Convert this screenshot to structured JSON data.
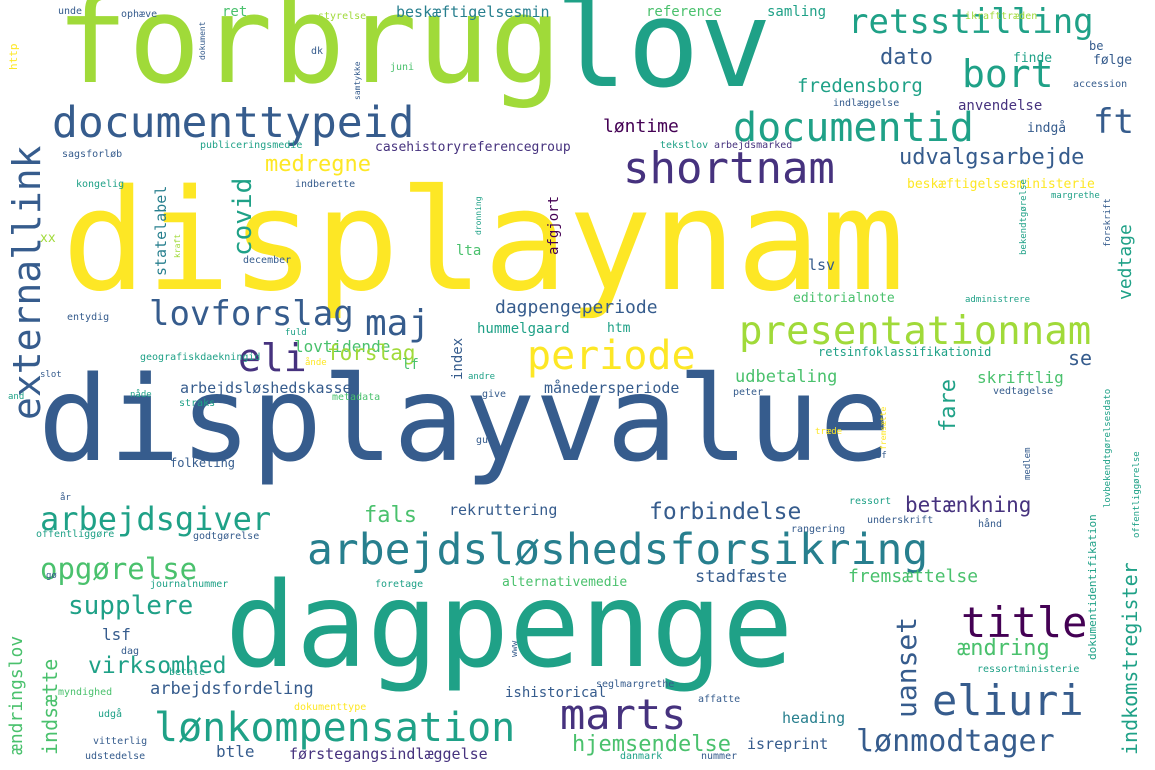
{
  "colors": {
    "yellow": "#fde725",
    "lime": "#a0da39",
    "green": "#4ac16d",
    "teal": "#1fa187",
    "cyan": "#277f8e",
    "blue": "#365c8d",
    "indigo": "#46327e",
    "purple": "#440154"
  },
  "words": [
    {
      "text": "displayvalue",
      "color": "blue"
    },
    {
      "text": "displaynam",
      "color": "yellow"
    },
    {
      "text": "forbrug",
      "color": "lime"
    },
    {
      "text": "lov",
      "color": "teal"
    },
    {
      "text": "dagpenge",
      "color": "teal"
    },
    {
      "text": "arbejdsløshedsforsikring",
      "color": "cyan"
    },
    {
      "text": "lønkompensation",
      "color": "teal"
    },
    {
      "text": "presentationnam",
      "color": "lime"
    },
    {
      "text": "documenttypeid",
      "color": "blue"
    },
    {
      "text": "shortnam",
      "color": "indigo"
    },
    {
      "text": "documentid",
      "color": "teal"
    },
    {
      "text": "retsstilling",
      "color": "teal"
    },
    {
      "text": "bort",
      "color": "teal"
    },
    {
      "text": "externallink",
      "color": "blue"
    },
    {
      "text": "periode",
      "color": "yellow"
    },
    {
      "text": "eli",
      "color": "indigo"
    },
    {
      "text": "lovforslag",
      "color": "blue"
    },
    {
      "text": "maj",
      "color": "blue"
    },
    {
      "text": "marts",
      "color": "indigo"
    },
    {
      "text": "title",
      "color": "purple"
    },
    {
      "text": "eliuri",
      "color": "blue"
    },
    {
      "text": "lønmodtager",
      "color": "blue"
    },
    {
      "text": "arbejdsgiver",
      "color": "teal"
    },
    {
      "text": "opgørelse",
      "color": "green"
    },
    {
      "text": "supplere",
      "color": "teal"
    },
    {
      "text": "virksomhed",
      "color": "teal"
    },
    {
      "text": "arbejdsfordeling",
      "color": "blue"
    },
    {
      "text": "hjemsendelse",
      "color": "green"
    },
    {
      "text": "covid",
      "color": "teal"
    },
    {
      "text": "medregne",
      "color": "yellow"
    },
    {
      "text": "udvalgsarbejde",
      "color": "blue"
    },
    {
      "text": "dato",
      "color": "blue"
    },
    {
      "text": "ft",
      "color": "blue"
    },
    {
      "text": "fredensborg",
      "color": "teal"
    },
    {
      "text": "løntime",
      "color": "purple"
    },
    {
      "text": "dagpengeperiode",
      "color": "blue"
    },
    {
      "text": "forbindelse",
      "color": "blue"
    },
    {
      "text": "betænkning",
      "color": "indigo"
    },
    {
      "text": "fals",
      "color": "green"
    },
    {
      "text": "rekruttering",
      "color": "blue"
    },
    {
      "text": "udbetaling",
      "color": "green"
    },
    {
      "text": "månedersperiode",
      "color": "blue"
    },
    {
      "text": "arbejdsløshedskasse",
      "color": "blue"
    },
    {
      "text": "lovtidende",
      "color": "green"
    },
    {
      "text": "forslag",
      "color": "lime"
    },
    {
      "text": "uanset",
      "color": "blue"
    },
    {
      "text": "ændring",
      "color": "green"
    },
    {
      "text": "fremsættelse",
      "color": "green"
    },
    {
      "text": "stadfæste",
      "color": "blue"
    },
    {
      "text": "indkomstregister",
      "color": "teal"
    },
    {
      "text": "ændringslov",
      "color": "green"
    },
    {
      "text": "indsætte",
      "color": "green"
    },
    {
      "text": "lsf",
      "color": "blue"
    },
    {
      "text": "btle",
      "color": "blue"
    },
    {
      "text": "førstegangsindlæggelse",
      "color": "indigo"
    },
    {
      "text": "heading",
      "color": "cyan"
    },
    {
      "text": "isreprint",
      "color": "blue"
    },
    {
      "text": "ishistorical",
      "color": "blue"
    },
    {
      "text": "skriftlig",
      "color": "green"
    },
    {
      "text": "fare",
      "color": "teal"
    },
    {
      "text": "se",
      "color": "blue"
    },
    {
      "text": "vedtage",
      "color": "teal"
    },
    {
      "text": "lsv",
      "color": "blue"
    },
    {
      "text": "lta",
      "color": "green"
    },
    {
      "text": "afgjort",
      "color": "purple"
    },
    {
      "text": "statelabel",
      "color": "cyan"
    },
    {
      "text": "beskæftigelsesmin",
      "color": "cyan"
    },
    {
      "text": "reference",
      "color": "green"
    },
    {
      "text": "samling",
      "color": "teal"
    },
    {
      "text": "ret",
      "color": "green"
    },
    {
      "text": "finde",
      "color": "teal"
    },
    {
      "text": "følge",
      "color": "blue"
    },
    {
      "text": "be",
      "color": "blue"
    },
    {
      "text": "anvendelse",
      "color": "indigo"
    },
    {
      "text": "indgå",
      "color": "blue"
    },
    {
      "text": "casehistoryreferencegroup",
      "color": "indigo"
    },
    {
      "text": "beskæftigelsesministerie",
      "color": "yellow"
    },
    {
      "text": "editorialnote",
      "color": "green"
    },
    {
      "text": "hummelgaard",
      "color": "teal"
    },
    {
      "text": "htm",
      "color": "teal"
    },
    {
      "text": "index",
      "color": "blue"
    },
    {
      "text": "lf",
      "color": "green"
    },
    {
      "text": "retsinfoklassifikationid",
      "color": "teal"
    },
    {
      "text": "alternativemedie",
      "color": "green"
    },
    {
      "text": "kongelig",
      "color": "teal"
    },
    {
      "text": "sagsforløb",
      "color": "blue"
    },
    {
      "text": "publiceringsmedie",
      "color": "teal"
    },
    {
      "text": "indberette",
      "color": "blue"
    },
    {
      "text": "xx",
      "color": "lime"
    },
    {
      "text": "december",
      "color": "blue"
    },
    {
      "text": "entydig",
      "color": "blue"
    },
    {
      "text": "geografiskdaekningid",
      "color": "teal"
    },
    {
      "text": "folketing",
      "color": "blue"
    },
    {
      "text": "offentliggøre",
      "color": "teal"
    },
    {
      "text": "godtgørelse",
      "color": "blue"
    },
    {
      "text": "journalnummer",
      "color": "teal"
    },
    {
      "text": "metadata",
      "color": "green"
    },
    {
      "text": "straks",
      "color": "teal"
    },
    {
      "text": "give",
      "color": "blue"
    },
    {
      "text": "andre",
      "color": "teal"
    },
    {
      "text": "gud",
      "color": "blue"
    },
    {
      "text": "peter",
      "color": "blue"
    },
    {
      "text": "vedtagelse",
      "color": "blue"
    },
    {
      "text": "ressort",
      "color": "teal"
    },
    {
      "text": "underskrift",
      "color": "blue"
    },
    {
      "text": "hånd",
      "color": "blue"
    },
    {
      "text": "rangering",
      "color": "blue"
    },
    {
      "text": "foretage",
      "color": "teal"
    },
    {
      "text": "tekstlov",
      "color": "teal"
    },
    {
      "text": "arbejdsmarked",
      "color": "indigo"
    },
    {
      "text": "dokumentidentifikation",
      "color": "teal"
    },
    {
      "text": "ressortministerie",
      "color": "teal"
    },
    {
      "text": "seglmargrethe",
      "color": "blue"
    },
    {
      "text": "affatte",
      "color": "blue"
    },
    {
      "text": "dokumenttype",
      "color": "yellow"
    },
    {
      "text": "danmark",
      "color": "teal"
    },
    {
      "text": "nummer",
      "color": "blue"
    },
    {
      "text": "udstedelse",
      "color": "blue"
    },
    {
      "text": "vitterlig",
      "color": "blue"
    },
    {
      "text": "udgå",
      "color": "teal"
    },
    {
      "text": "myndighed",
      "color": "green"
    },
    {
      "text": "betale",
      "color": "teal"
    },
    {
      "text": "dag",
      "color": "blue"
    },
    {
      "text": "www",
      "color": "blue"
    },
    {
      "text": "unde",
      "color": "blue"
    },
    {
      "text": "ophæve",
      "color": "blue"
    },
    {
      "text": "dokument",
      "color": "blue"
    },
    {
      "text": "styrelse",
      "color": "lime"
    },
    {
      "text": "ikrafttræden",
      "color": "lime"
    },
    {
      "text": "accession",
      "color": "blue"
    },
    {
      "text": "indlæggelse",
      "color": "blue"
    },
    {
      "text": "dk",
      "color": "blue"
    },
    {
      "text": "samtykke",
      "color": "blue"
    },
    {
      "text": "juni",
      "color": "green"
    },
    {
      "text": "http",
      "color": "yellow"
    },
    {
      "text": "dronning",
      "color": "teal"
    },
    {
      "text": "kraft",
      "color": "lime"
    },
    {
      "text": "fuld",
      "color": "teal"
    },
    {
      "text": "ånde",
      "color": "yellow"
    },
    {
      "text": "margrethe",
      "color": "teal"
    },
    {
      "text": "bekendtgørelse",
      "color": "teal"
    },
    {
      "text": "forskrift",
      "color": "blue"
    },
    {
      "text": "administrere",
      "color": "teal"
    },
    {
      "text": "fremsætte",
      "color": "yellow"
    },
    {
      "text": "træde",
      "color": "yellow"
    },
    {
      "text": "medlem",
      "color": "blue"
    },
    {
      "text": "lovbekendtgørelsesdato",
      "color": "teal"
    },
    {
      "text": "offentliggørelse",
      "color": "teal"
    },
    {
      "text": "sf",
      "color": "blue"
    },
    {
      "text": "and",
      "color": "teal"
    },
    {
      "text": "slot",
      "color": "blue"
    },
    {
      "text": "nåde",
      "color": "teal"
    },
    {
      "text": "år",
      "color": "blue"
    },
    {
      "text": "gø",
      "color": "blue"
    }
  ]
}
